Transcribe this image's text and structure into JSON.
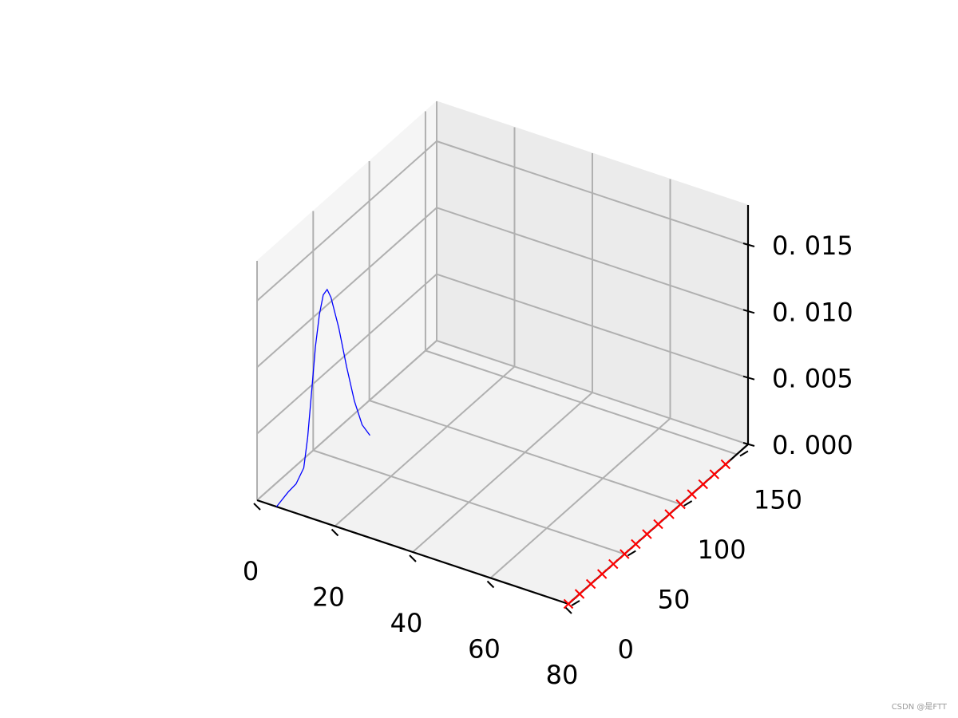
{
  "chart_data": {
    "type": "line",
    "projection": "3d",
    "grid": true,
    "xlim": [
      0,
      80
    ],
    "ylim": [
      0,
      160
    ],
    "zlim": [
      0,
      0.018
    ],
    "x_ticks": [
      0,
      20,
      40,
      60,
      80
    ],
    "x_tick_labels": [
      "0",
      "20",
      "40",
      "60",
      "80"
    ],
    "y_ticks": [
      0,
      50,
      100,
      150
    ],
    "y_tick_labels": [
      "0",
      "50",
      "100",
      "150"
    ],
    "z_ticks": [
      0,
      0.005,
      0.01,
      0.015
    ],
    "z_tick_labels": [
      "0. 000",
      "0. 005",
      "0. 010",
      "0. 015"
    ],
    "series": [
      {
        "style": "line",
        "color": "#0000ff",
        "points": [
          [
            5,
            0,
            0.0
          ],
          [
            8,
            0,
            0.0014
          ],
          [
            10,
            0,
            0.0022
          ],
          [
            12,
            0,
            0.0036
          ],
          [
            13,
            0,
            0.006
          ],
          [
            14,
            0,
            0.0095
          ],
          [
            15,
            0,
            0.013
          ],
          [
            16,
            0,
            0.0155
          ],
          [
            17,
            0,
            0.0171
          ],
          [
            18,
            0,
            0.0176
          ],
          [
            19,
            0,
            0.0171
          ],
          [
            21,
            0,
            0.015
          ],
          [
            23,
            0,
            0.0123
          ],
          [
            25,
            0,
            0.0099
          ],
          [
            27,
            0,
            0.0083
          ],
          [
            29,
            0,
            0.0077
          ]
        ]
      },
      {
        "style": "line-marker",
        "marker": "x",
        "color": "#ff0000",
        "x": 80,
        "y": [
          0,
          10,
          20,
          30,
          40,
          50,
          60,
          70,
          80,
          90,
          100,
          110,
          120,
          130,
          140
        ],
        "z": 0
      }
    ]
  },
  "watermark": "CSDN @是FTT"
}
